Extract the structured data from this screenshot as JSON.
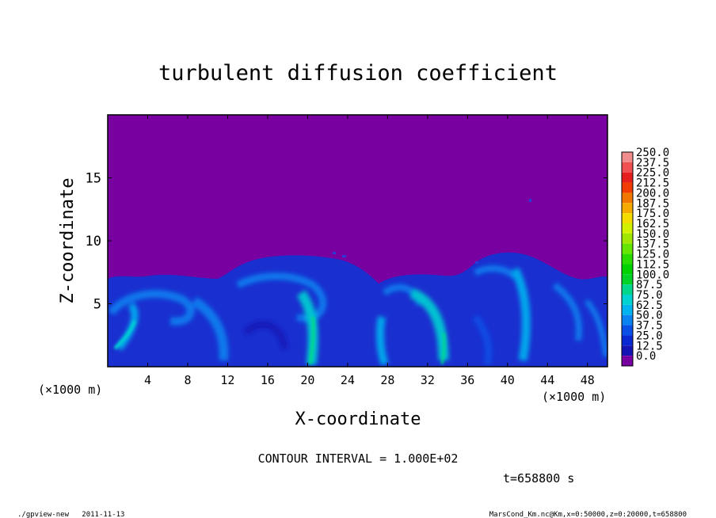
{
  "chart_data": {
    "type": "heatmap",
    "title": "turbulent diffusion coefficient",
    "xlabel": "X-coordinate",
    "ylabel": "Z-coordinate",
    "x_unit_left": "(×1000 m)",
    "x_unit_right": "(×1000 m)",
    "xlim": [
      0,
      50
    ],
    "ylim": [
      0,
      20
    ],
    "xticks": [
      4,
      8,
      12,
      16,
      20,
      24,
      28,
      32,
      36,
      40,
      44,
      48
    ],
    "yticks": [
      5,
      10,
      15
    ],
    "colorbar_levels": [
      "250.0",
      "237.5",
      "225.0",
      "212.5",
      "200.0",
      "187.5",
      "175.0",
      "162.5",
      "150.0",
      "137.5",
      "125.0",
      "112.5",
      "100.0",
      "87.5",
      "75.0",
      "62.5",
      "50.0",
      "37.5",
      "25.0",
      "12.5",
      "0.0"
    ],
    "colorbar_colors": [
      "#f08c8c",
      "#f05050",
      "#e61e1e",
      "#f03c00",
      "#f07800",
      "#f5aa00",
      "#f5dc00",
      "#d2f000",
      "#a0e600",
      "#64e600",
      "#28dc00",
      "#00d200",
      "#00d228",
      "#00d68c",
      "#00d2d2",
      "#00b4f0",
      "#0a82f0",
      "#0a50e6",
      "#0a28d2",
      "#1414b4",
      "#7800a0"
    ],
    "background_color": "#7800a0",
    "contour_interval": "CONTOUR INTERVAL = 1.000E+02",
    "time_label": "t=658800 s",
    "footer_left": "./gpview-new   2011-11-13",
    "footer_right": "MarsCond_Km.nc@Km,x=0:50000,z=0:20000,t=658800"
  }
}
